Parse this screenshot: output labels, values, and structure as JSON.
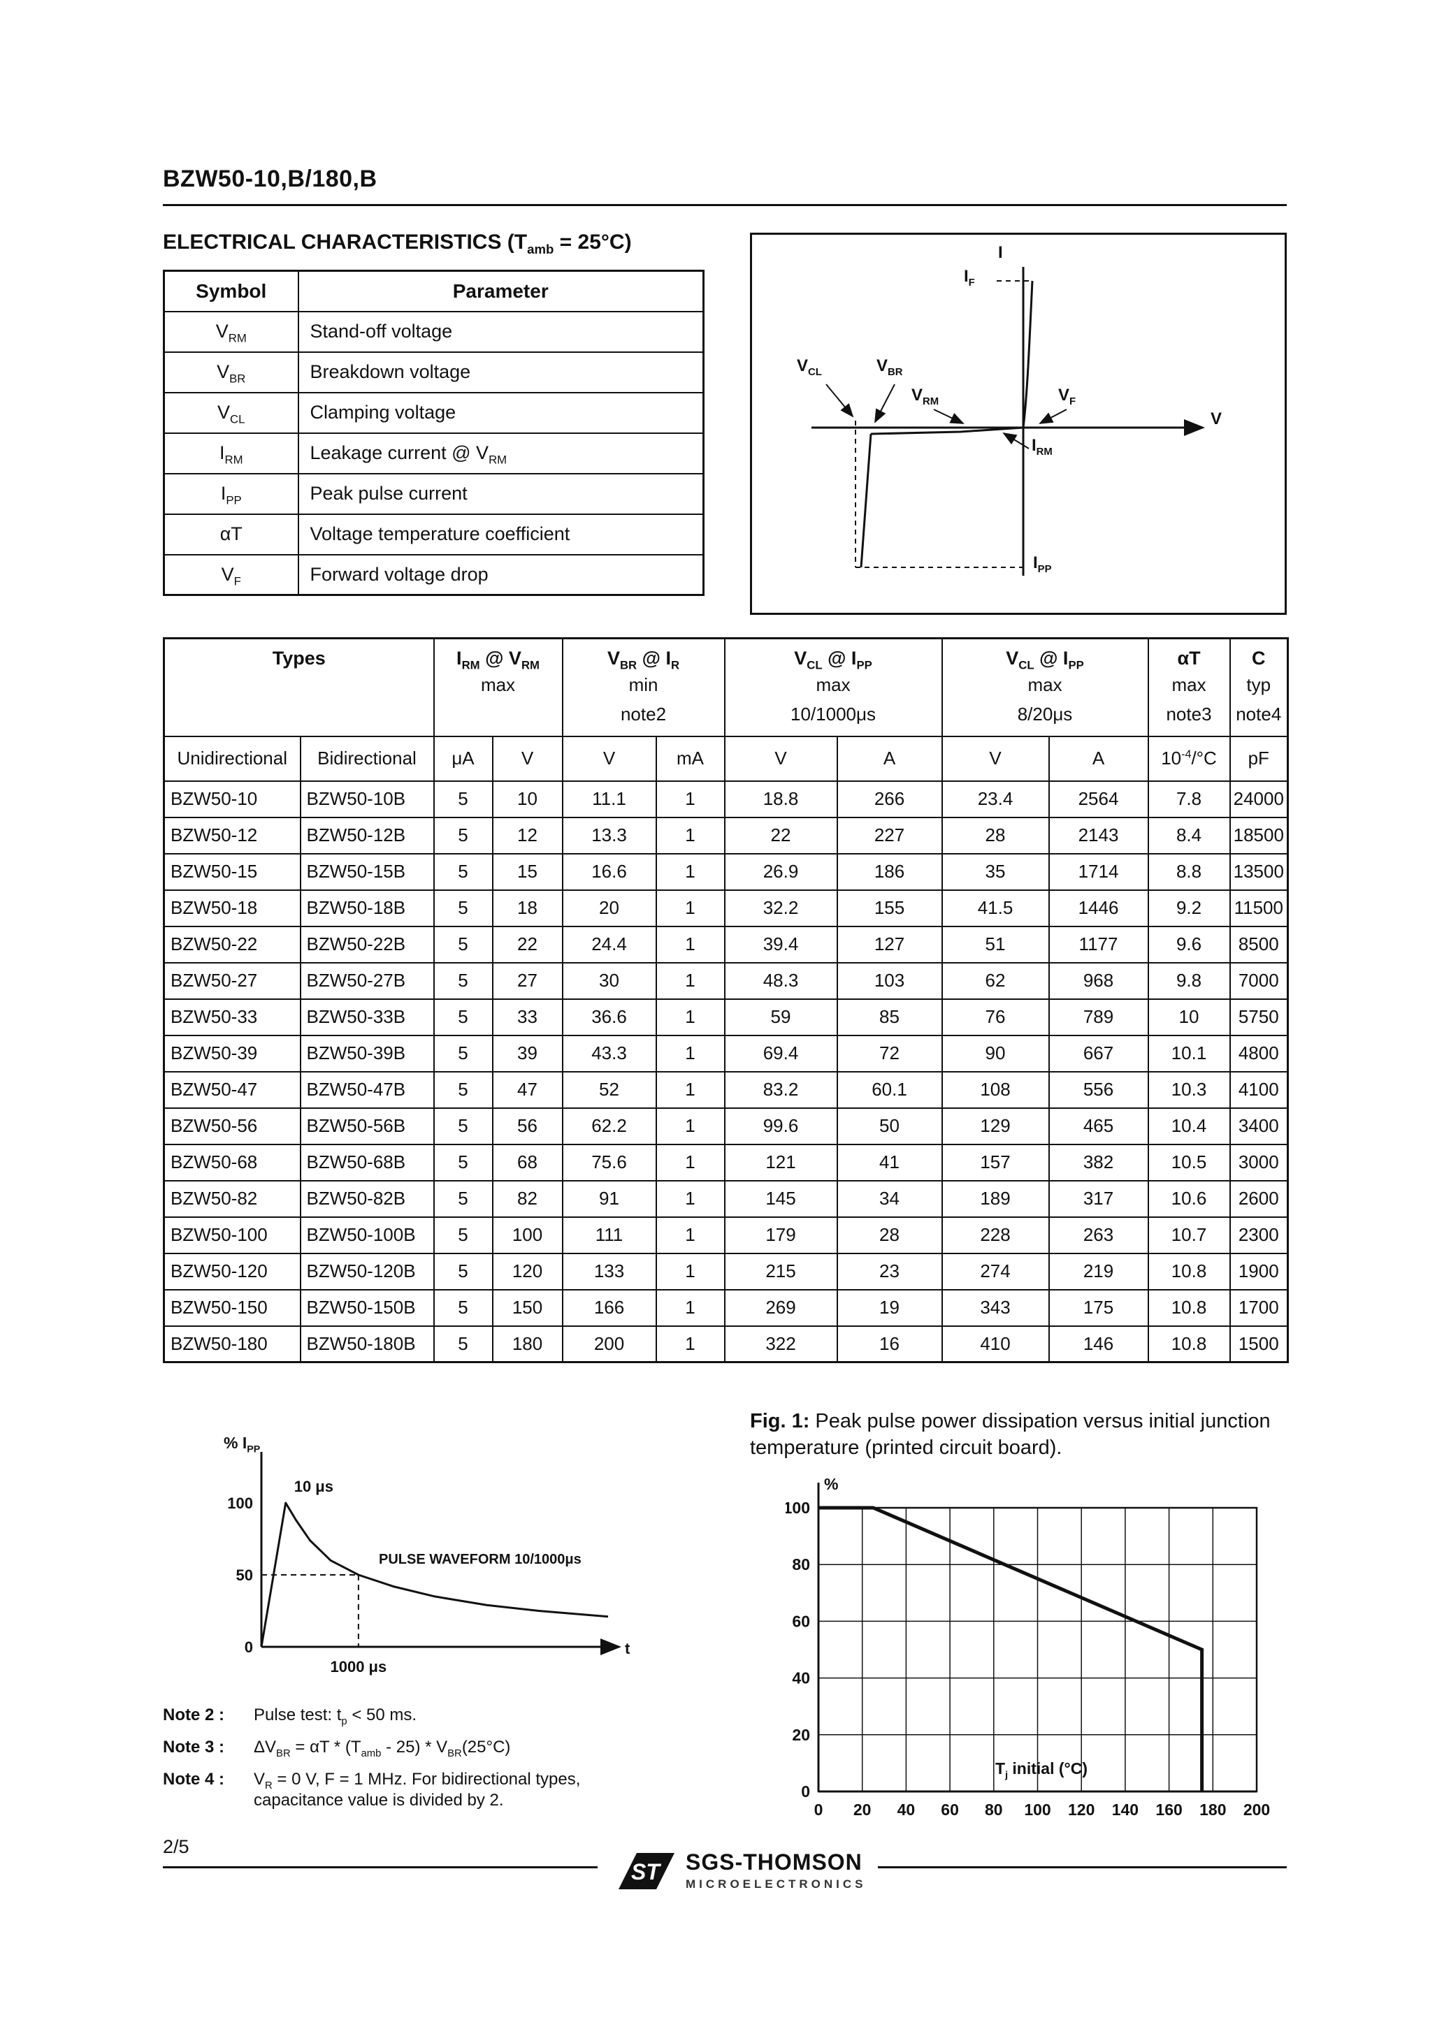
{
  "page": {
    "doc_title": "BZW50-10,B/180,B"
  },
  "electrical_characteristics": {
    "title": "ELECTRICAL CHARACTERISTICS (T_{amb} = 25°C)"
  },
  "symbol_table": {
    "headers": {
      "symbol": "Symbol",
      "parameter": "Parameter"
    },
    "rows": [
      {
        "symbol": "V_{RM}",
        "parameter": "Stand-off voltage"
      },
      {
        "symbol": "V_{BR}",
        "parameter": "Breakdown voltage"
      },
      {
        "symbol": "V_{CL}",
        "parameter": "Clamping voltage"
      },
      {
        "symbol": "I_{RM}",
        "parameter": "Leakage current @ V_{RM}"
      },
      {
        "symbol": "I_{PP}",
        "parameter": "Peak pulse current"
      },
      {
        "symbol": "αT",
        "parameter": "Voltage temperature coefficient"
      },
      {
        "symbol": "V_{F}",
        "parameter": "Forward voltage drop"
      }
    ]
  },
  "iv_diagram": {
    "labels": {
      "i": "I",
      "if": "I_{F}",
      "v": "V",
      "vcl": "V_{CL}",
      "vbr": "V_{BR}",
      "vrm": "V_{RM}",
      "vf": "V_{F}",
      "irm": "I_{RM}",
      "ipp": "I_{PP}"
    }
  },
  "main_table": {
    "header": {
      "types": "Types",
      "groups": [
        {
          "title": "I_{RM} @ V_{RM}",
          "l2": "max",
          "l3": "",
          "span": 2
        },
        {
          "title": "V_{BR}  @  I_{R}",
          "l2": "min",
          "l3": "note2",
          "span": 2
        },
        {
          "title": "V_{CL} @ I_{PP}",
          "l2": "max",
          "l3": "10/1000μs",
          "span": 2
        },
        {
          "title": "V_{CL} @ I_{PP}",
          "l2": "max",
          "l3": "8/20μs",
          "span": 2
        },
        {
          "title": "αT",
          "l2": "max",
          "l3": "note3",
          "span": 1
        },
        {
          "title": "C",
          "l2": "typ",
          "l3": "note4",
          "span": 1
        }
      ],
      "unidirectional": "Unidirectional",
      "bidirectional": "Bidirectional",
      "units": [
        "μA",
        "V",
        "V",
        "mA",
        "V",
        "A",
        "V",
        "A",
        "10^{-4}/°C",
        "pF"
      ]
    },
    "rows": [
      [
        "BZW50-10",
        "BZW50-10B",
        "5",
        "10",
        "11.1",
        "1",
        "18.8",
        "266",
        "23.4",
        "2564",
        "7.8",
        "24000"
      ],
      [
        "BZW50-12",
        "BZW50-12B",
        "5",
        "12",
        "13.3",
        "1",
        "22",
        "227",
        "28",
        "2143",
        "8.4",
        "18500"
      ],
      [
        "BZW50-15",
        "BZW50-15B",
        "5",
        "15",
        "16.6",
        "1",
        "26.9",
        "186",
        "35",
        "1714",
        "8.8",
        "13500"
      ],
      [
        "BZW50-18",
        "BZW50-18B",
        "5",
        "18",
        "20",
        "1",
        "32.2",
        "155",
        "41.5",
        "1446",
        "9.2",
        "11500"
      ],
      [
        "BZW50-22",
        "BZW50-22B",
        "5",
        "22",
        "24.4",
        "1",
        "39.4",
        "127",
        "51",
        "1177",
        "9.6",
        "8500"
      ],
      [
        "BZW50-27",
        "BZW50-27B",
        "5",
        "27",
        "30",
        "1",
        "48.3",
        "103",
        "62",
        "968",
        "9.8",
        "7000"
      ],
      [
        "BZW50-33",
        "BZW50-33B",
        "5",
        "33",
        "36.6",
        "1",
        "59",
        "85",
        "76",
        "789",
        "10",
        "5750"
      ],
      [
        "BZW50-39",
        "BZW50-39B",
        "5",
        "39",
        "43.3",
        "1",
        "69.4",
        "72",
        "90",
        "667",
        "10.1",
        "4800"
      ],
      [
        "BZW50-47",
        "BZW50-47B",
        "5",
        "47",
        "52",
        "1",
        "83.2",
        "60.1",
        "108",
        "556",
        "10.3",
        "4100"
      ],
      [
        "BZW50-56",
        "BZW50-56B",
        "5",
        "56",
        "62.2",
        "1",
        "99.6",
        "50",
        "129",
        "465",
        "10.4",
        "3400"
      ],
      [
        "BZW50-68",
        "BZW50-68B",
        "5",
        "68",
        "75.6",
        "1",
        "121",
        "41",
        "157",
        "382",
        "10.5",
        "3000"
      ],
      [
        "BZW50-82",
        "BZW50-82B",
        "5",
        "82",
        "91",
        "1",
        "145",
        "34",
        "189",
        "317",
        "10.6",
        "2600"
      ],
      [
        "BZW50-100",
        "BZW50-100B",
        "5",
        "100",
        "111",
        "1",
        "179",
        "28",
        "228",
        "263",
        "10.7",
        "2300"
      ],
      [
        "BZW50-120",
        "BZW50-120B",
        "5",
        "120",
        "133",
        "1",
        "215",
        "23",
        "274",
        "219",
        "10.8",
        "1900"
      ],
      [
        "BZW50-150",
        "BZW50-150B",
        "5",
        "150",
        "166",
        "1",
        "269",
        "19",
        "343",
        "175",
        "10.8",
        "1700"
      ],
      [
        "BZW50-180",
        "BZW50-180B",
        "5",
        "180",
        "200",
        "1",
        "322",
        "16",
        "410",
        "146",
        "10.8",
        "1500"
      ]
    ]
  },
  "fig1": {
    "label": "Fig. 1:",
    "caption": "Peak pulse power dissipation versus initial junction temperature (printed circuit board)."
  },
  "notes": [
    {
      "label": "Note 2 :",
      "text": "Pulse test: t_{p} < 50 ms."
    },
    {
      "label": "Note 3 :",
      "text": "ΔV_{BR} = αT * (T_{amb} - 25) * V_{BR}(25°C)"
    },
    {
      "label": "Note 4 :",
      "text": "V_{R} = 0 V,  F = 1 MHz. For bidirectional types,",
      "text2": "capacitance value is divided by 2."
    }
  ],
  "footer": {
    "page_number": "2/5",
    "brand": "SGS-THOMSON",
    "brand_sub": "MICROELECTRONICS",
    "logo_text": "ST"
  },
  "chart_data": [
    {
      "id": "pulse-waveform",
      "type": "line",
      "title": "PULSE WAVEFORM 10/1000μs",
      "ylabel": "% I_{PP}",
      "xlabel": "t",
      "yticks": [
        100,
        50,
        0
      ],
      "annotations": [
        "10 μs",
        "1000 μs"
      ],
      "description": "Exponential test pulse: rises to 100% of IPP at 10 μs, decays to 50% at 1000 μs",
      "curve_norm": [
        [
          0,
          0
        ],
        [
          0.07,
          100
        ],
        [
          0.1,
          88
        ],
        [
          0.14,
          74
        ],
        [
          0.2,
          60
        ],
        [
          0.28,
          50
        ],
        [
          0.38,
          42
        ],
        [
          0.5,
          35
        ],
        [
          0.65,
          29
        ],
        [
          0.8,
          25
        ],
        [
          1,
          21
        ]
      ]
    },
    {
      "id": "fig1-derating",
      "type": "line",
      "xlabel": "T_{j} initial (°C)",
      "ylabel": "%",
      "xlim": [
        0,
        200
      ],
      "ylim": [
        0,
        100
      ],
      "xticks": [
        0,
        20,
        40,
        60,
        80,
        100,
        120,
        140,
        160,
        180,
        200
      ],
      "yticks": [
        0,
        20,
        40,
        60,
        80,
        100
      ],
      "grid": true,
      "series": [
        {
          "name": "peak-pulse-power-derating",
          "points": [
            [
              0,
              100
            ],
            [
              25,
              100
            ],
            [
              175,
              50
            ],
            [
              175,
              0
            ]
          ]
        }
      ]
    }
  ]
}
